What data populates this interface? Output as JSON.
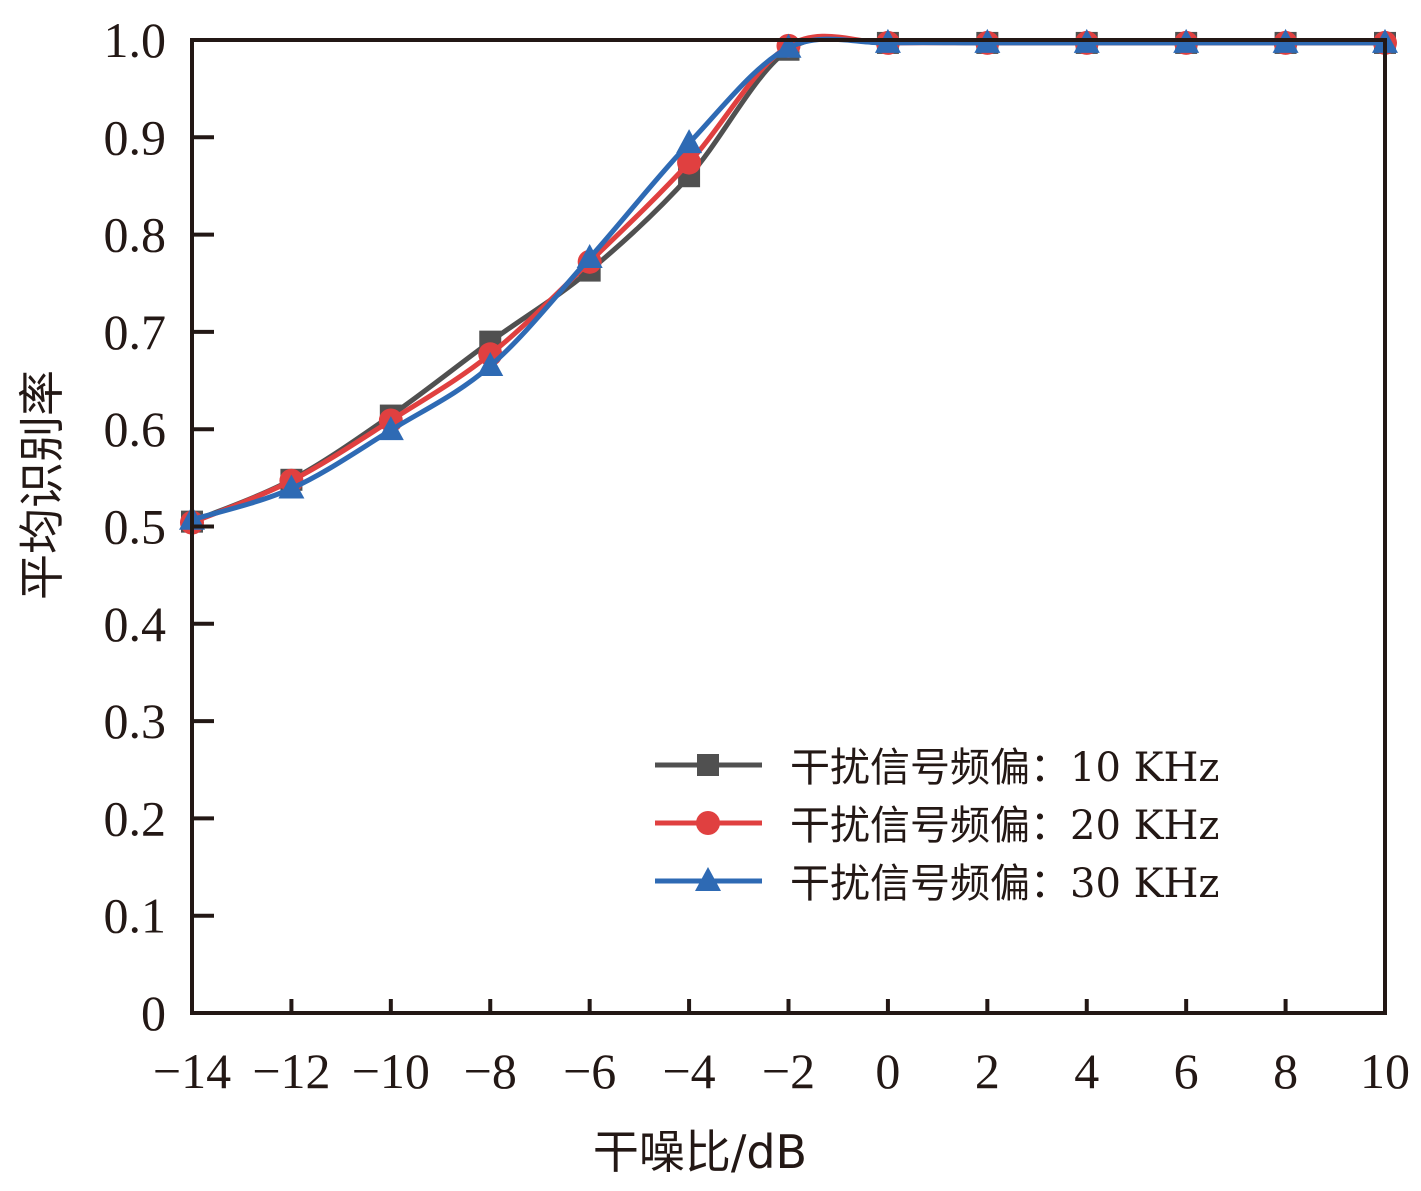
{
  "chart_data": {
    "type": "line",
    "title": "",
    "xlabel": "干噪比/dB",
    "ylabel": "平均识别率",
    "x": [
      -14,
      -12,
      -10,
      -8,
      -6,
      -4,
      -2,
      0,
      2,
      4,
      6,
      8,
      10
    ],
    "xlim": [
      -14,
      10
    ],
    "ylim": [
      0,
      1.0
    ],
    "xticks": [
      "−14",
      "−12",
      "−10",
      "−8",
      "−6",
      "−4",
      "−2",
      "0",
      "2",
      "4",
      "6",
      "8",
      "10"
    ],
    "yticks": [
      "0",
      "0.1",
      "0.2",
      "0.3",
      "0.4",
      "0.5",
      "0.6",
      "0.7",
      "0.8",
      "0.9",
      "1.0"
    ],
    "grid": false,
    "legend_position": "bottom-right",
    "series": [
      {
        "name": "干扰信号频偏：10 KHz",
        "color": "#505050",
        "marker": "square",
        "values": [
          0.505,
          0.548,
          0.614,
          0.69,
          0.763,
          0.86,
          0.99,
          0.997,
          0.997,
          0.997,
          0.997,
          0.997,
          0.997
        ]
      },
      {
        "name": "干扰信号频偏：20 KHz",
        "color": "#e04040",
        "marker": "circle",
        "values": [
          0.504,
          0.547,
          0.609,
          0.677,
          0.772,
          0.874,
          0.994,
          0.997,
          0.997,
          0.997,
          0.997,
          0.997,
          0.997
        ]
      },
      {
        "name": "干扰信号频偏：30 KHz",
        "color": "#2e6ab4",
        "marker": "triangle",
        "values": [
          0.507,
          0.539,
          0.599,
          0.665,
          0.776,
          0.894,
          0.992,
          0.997,
          0.997,
          0.997,
          0.997,
          0.997,
          0.997
        ]
      }
    ]
  }
}
